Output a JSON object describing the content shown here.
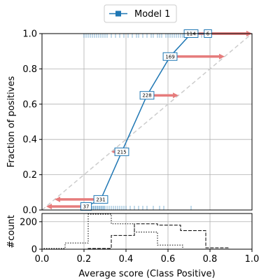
{
  "colors": {
    "series": "#1f77b4",
    "arrow": "#e67c7c",
    "diagonal": "#cccccc",
    "grid": "#b0b0b0",
    "hist": "#000000"
  },
  "chart_data": [
    {
      "type": "line",
      "name": "reliability-diagram",
      "xlim": [
        0,
        1
      ],
      "ylim": [
        0,
        1
      ],
      "ylabel": "Fraction of positives",
      "xticks": [
        "0.0",
        "0.2",
        "0.4",
        "0.6",
        "0.8",
        "1.0"
      ],
      "yticks": [
        "0.0",
        "0.2",
        "0.4",
        "0.6",
        "0.8",
        "1.0"
      ],
      "yticks_values": [
        0,
        0.2,
        0.4,
        0.6,
        0.8,
        1.0
      ],
      "grid": true,
      "legend": {
        "placement": "top-center",
        "entries": [
          "Model 1"
        ]
      },
      "diagonal": [
        [
          0,
          0
        ],
        [
          1,
          1
        ]
      ],
      "series": [
        {
          "name": "Model 1",
          "points": [
            {
              "x": 0.21,
              "y": 0.02,
              "count": "37"
            },
            {
              "x": 0.28,
              "y": 0.06,
              "count": "231"
            },
            {
              "x": 0.38,
              "y": 0.33,
              "count": "215"
            },
            {
              "x": 0.5,
              "y": 0.65,
              "count": "228"
            },
            {
              "x": 0.61,
              "y": 0.87,
              "count": "169"
            },
            {
              "x": 0.71,
              "y": 1.0,
              "count": "114"
            },
            {
              "x": 0.79,
              "y": 1.0,
              "count": "6"
            }
          ]
        }
      ],
      "arrows": [
        {
          "y": 0.02,
          "x_from": 0.21,
          "x_to": 0.02
        },
        {
          "y": 0.06,
          "x_from": 0.28,
          "x_to": 0.06
        },
        {
          "y": 0.33,
          "x_from": 0.38,
          "x_to": 0.33
        },
        {
          "y": 0.65,
          "x_from": 0.5,
          "x_to": 0.65
        },
        {
          "y": 0.87,
          "x_from": 0.61,
          "x_to": 0.87
        },
        {
          "y": 1.0,
          "x_from": 0.71,
          "x_to": 1.0
        },
        {
          "y": 1.0,
          "x_from": 0.79,
          "x_to": 1.0
        }
      ],
      "rug_positive": [
        0.2,
        0.21,
        0.22,
        0.23,
        0.24,
        0.25,
        0.26,
        0.27,
        0.28,
        0.29,
        0.3,
        0.31,
        0.33,
        0.35,
        0.37,
        0.39,
        0.41,
        0.43,
        0.45,
        0.46,
        0.48,
        0.5,
        0.52,
        0.53,
        0.55,
        0.56,
        0.57,
        0.59,
        0.6,
        0.61,
        0.62,
        0.63,
        0.64,
        0.65,
        0.66,
        0.67,
        0.68,
        0.69,
        0.7,
        0.71,
        0.72,
        0.74,
        0.76,
        0.78,
        0.8
      ],
      "rug_negative": [
        0.2,
        0.21,
        0.22,
        0.225,
        0.23,
        0.235,
        0.24,
        0.245,
        0.25,
        0.255,
        0.26,
        0.265,
        0.27,
        0.275,
        0.28,
        0.285,
        0.29,
        0.295,
        0.3,
        0.31,
        0.32,
        0.33,
        0.34,
        0.35,
        0.36,
        0.37,
        0.38,
        0.39,
        0.4,
        0.42,
        0.44,
        0.46,
        0.48,
        0.5,
        0.53,
        0.56,
        0.58,
        0.71
      ]
    },
    {
      "type": "histogram",
      "name": "count-histogram",
      "xlim": [
        0,
        1
      ],
      "ylim": [
        0,
        260
      ],
      "xlabel": "Average score (Class Positive)",
      "ylabel": "#count",
      "xticks": [
        "0.0",
        "0.2",
        "0.4",
        "0.6",
        "0.8",
        "1.0"
      ],
      "xticks_values": [
        0,
        0.2,
        0.4,
        0.6,
        0.8,
        1.0
      ],
      "yticks": [
        "0",
        "200"
      ],
      "yticks_values": [
        0,
        200
      ],
      "grid": true,
      "series": [
        {
          "name": "",
          "style": "dotted",
          "edges": [
            0.0,
            0.11,
            0.22,
            0.33,
            0.44,
            0.55,
            0.67
          ],
          "counts": [
            5,
            45,
            255,
            185,
            125,
            30
          ]
        },
        {
          "name": "",
          "style": "dashed",
          "edges": [
            0.22,
            0.33,
            0.44,
            0.55,
            0.66,
            0.78,
            0.89
          ],
          "counts": [
            5,
            100,
            185,
            175,
            135,
            10
          ]
        }
      ]
    }
  ]
}
